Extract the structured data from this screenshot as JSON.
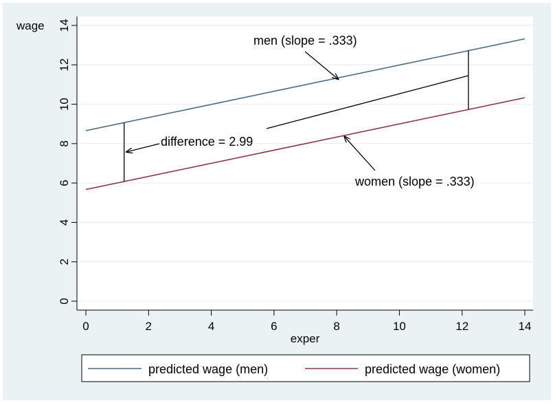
{
  "chart_data": {
    "type": "line",
    "title": "",
    "xlabel": "exper",
    "ylabel": "wage",
    "xlim": [
      0,
      14
    ],
    "ylim": [
      0,
      14
    ],
    "xticks": [
      0,
      2,
      4,
      6,
      8,
      10,
      12,
      14
    ],
    "yticks": [
      0,
      2,
      4,
      6,
      8,
      10,
      12,
      14
    ],
    "grid": true,
    "legend_position": "bottom",
    "series": [
      {
        "name": "predicted wage (men)",
        "color": "#4a6b85",
        "x": [
          0,
          14
        ],
        "y": [
          8.66,
          13.32
        ]
      },
      {
        "name": "predicted wage (women)",
        "color": "#8b3a3e",
        "x": [
          0,
          14
        ],
        "y": [
          5.67,
          10.33
        ]
      }
    ],
    "annotations": [
      {
        "id": "men",
        "text": "men (slope = .333)"
      },
      {
        "id": "women",
        "text": "women (slope = .333)"
      },
      {
        "id": "difference",
        "text": "difference = 2.99"
      }
    ]
  }
}
